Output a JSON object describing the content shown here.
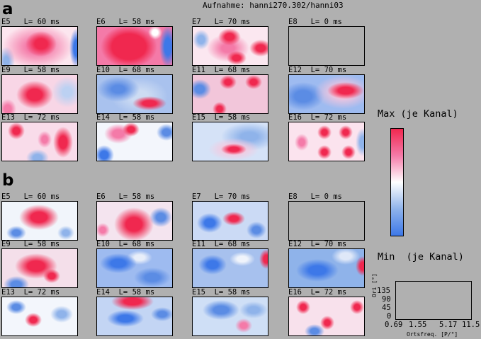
{
  "title": "Aufnahme: hanni270.302/hanni03",
  "panel_a": "a",
  "panel_b": "b",
  "colors": {
    "max": "#f0284f",
    "min": "#3d78e8",
    "background": "#b0b0b0"
  },
  "rows": {
    "a": [
      [
        {
          "label": "E5   L= 60 ms"
        },
        {
          "label": "E6   L= 58 ms"
        },
        {
          "label": "E7   L= 70 ms"
        },
        {
          "label": "E8   L= 0 ms"
        }
      ],
      [
        {
          "label": "E9   L= 58 ms"
        },
        {
          "label": "E10  L= 68 ms"
        },
        {
          "label": "E11  L= 68 ms"
        },
        {
          "label": "E12  L= 70 ms"
        }
      ],
      [
        {
          "label": "E13  L= 72 ms"
        },
        {
          "label": "E14  L= 58 ms"
        },
        {
          "label": "E15  L= 58 ms"
        },
        {
          "label": "E16  L= 72 ms"
        }
      ]
    ],
    "b": [
      [
        {
          "label": "E5   L= 60 ms"
        },
        {
          "label": "E6   L= 58 ms"
        },
        {
          "label": "E7   L= 70 ms"
        },
        {
          "label": "E8   L= 0 ms"
        }
      ],
      [
        {
          "label": "E9   L= 58 ms"
        },
        {
          "label": "E10  L= 68 ms"
        },
        {
          "label": "E11  L= 68 ms"
        },
        {
          "label": "E12  L= 70 ms"
        }
      ],
      [
        {
          "label": "E13  L= 72 ms"
        },
        {
          "label": "E14  L= 58 ms"
        },
        {
          "label": "E15  L= 58 ms"
        },
        {
          "label": "E16  L= 72 ms"
        }
      ]
    ]
  },
  "legend": {
    "max": "Max (je Kanal)",
    "min": "Min  (je Kanal)"
  },
  "small_plot": {
    "ylabel": "Ori [°]",
    "xlabel": "Ortsfreq. [P/°]",
    "yticks": [
      "135",
      "90",
      "45",
      "0"
    ],
    "xticks": [
      "0.69",
      "1.55",
      "5.17",
      "11.5"
    ]
  }
}
